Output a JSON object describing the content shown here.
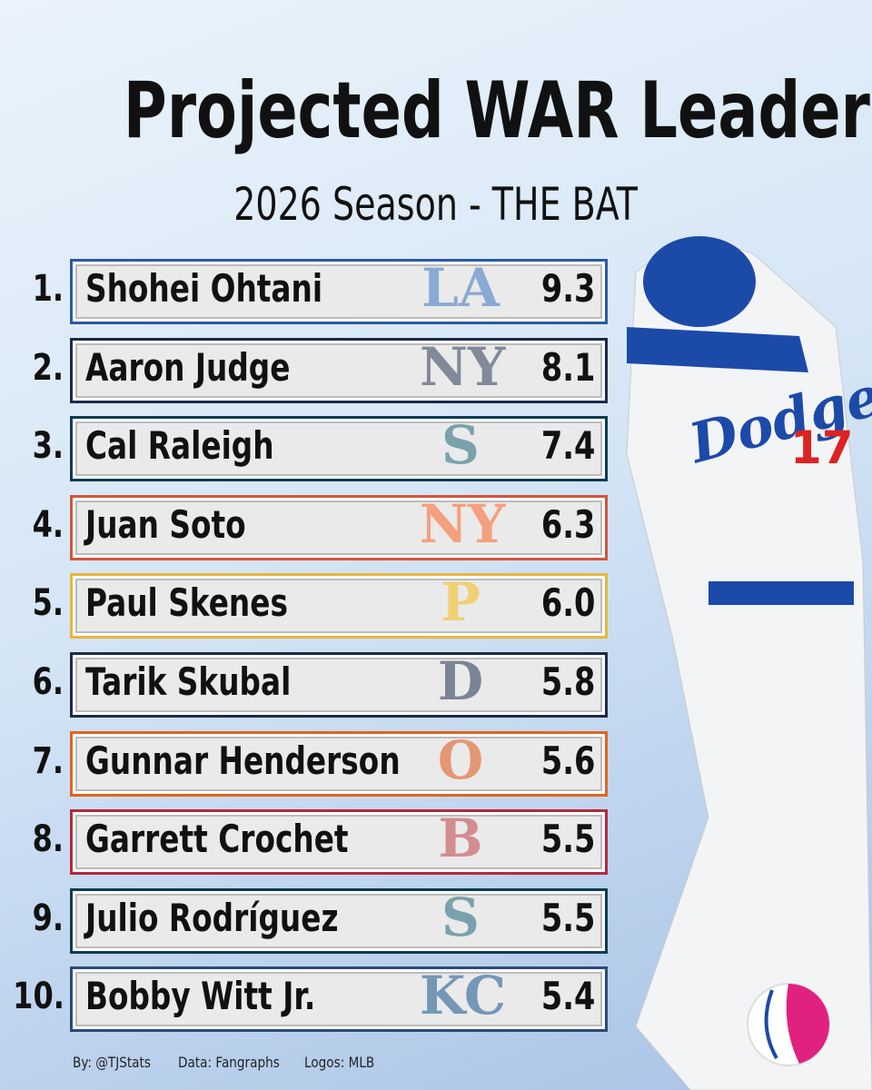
{
  "header": {
    "title": "Projected WAR Leaders",
    "subtitle": "2026 Season - THE BAT"
  },
  "rows": [
    {
      "rank": "1.",
      "name": "Shohei Ohtani",
      "logo": "LA",
      "war": "9.3"
    },
    {
      "rank": "2.",
      "name": "Aaron Judge",
      "logo": "NY",
      "war": "8.1"
    },
    {
      "rank": "3.",
      "name": "Cal Raleigh",
      "logo": "S",
      "war": "7.4"
    },
    {
      "rank": "4.",
      "name": "Juan Soto",
      "logo": "NY",
      "war": "6.3"
    },
    {
      "rank": "5.",
      "name": "Paul Skenes",
      "logo": "P",
      "war": "6.0"
    },
    {
      "rank": "6.",
      "name": "Tarik Skubal",
      "logo": "D",
      "war": "5.8"
    },
    {
      "rank": "7.",
      "name": "Gunnar Henderson",
      "logo": "O",
      "war": "5.6"
    },
    {
      "rank": "8.",
      "name": "Garrett Crochet",
      "logo": "B",
      "war": "5.5"
    },
    {
      "rank": "9.",
      "name": "Julio Rodríguez",
      "logo": "S",
      "war": "5.5"
    },
    {
      "rank": "10.",
      "name": "Bobby Witt Jr.",
      "logo": "KC",
      "war": "5.4"
    }
  ],
  "footer": {
    "credit": "By: @TJStats",
    "data": "Data: Fangraphs",
    "logos": "Logos: MLB"
  }
}
